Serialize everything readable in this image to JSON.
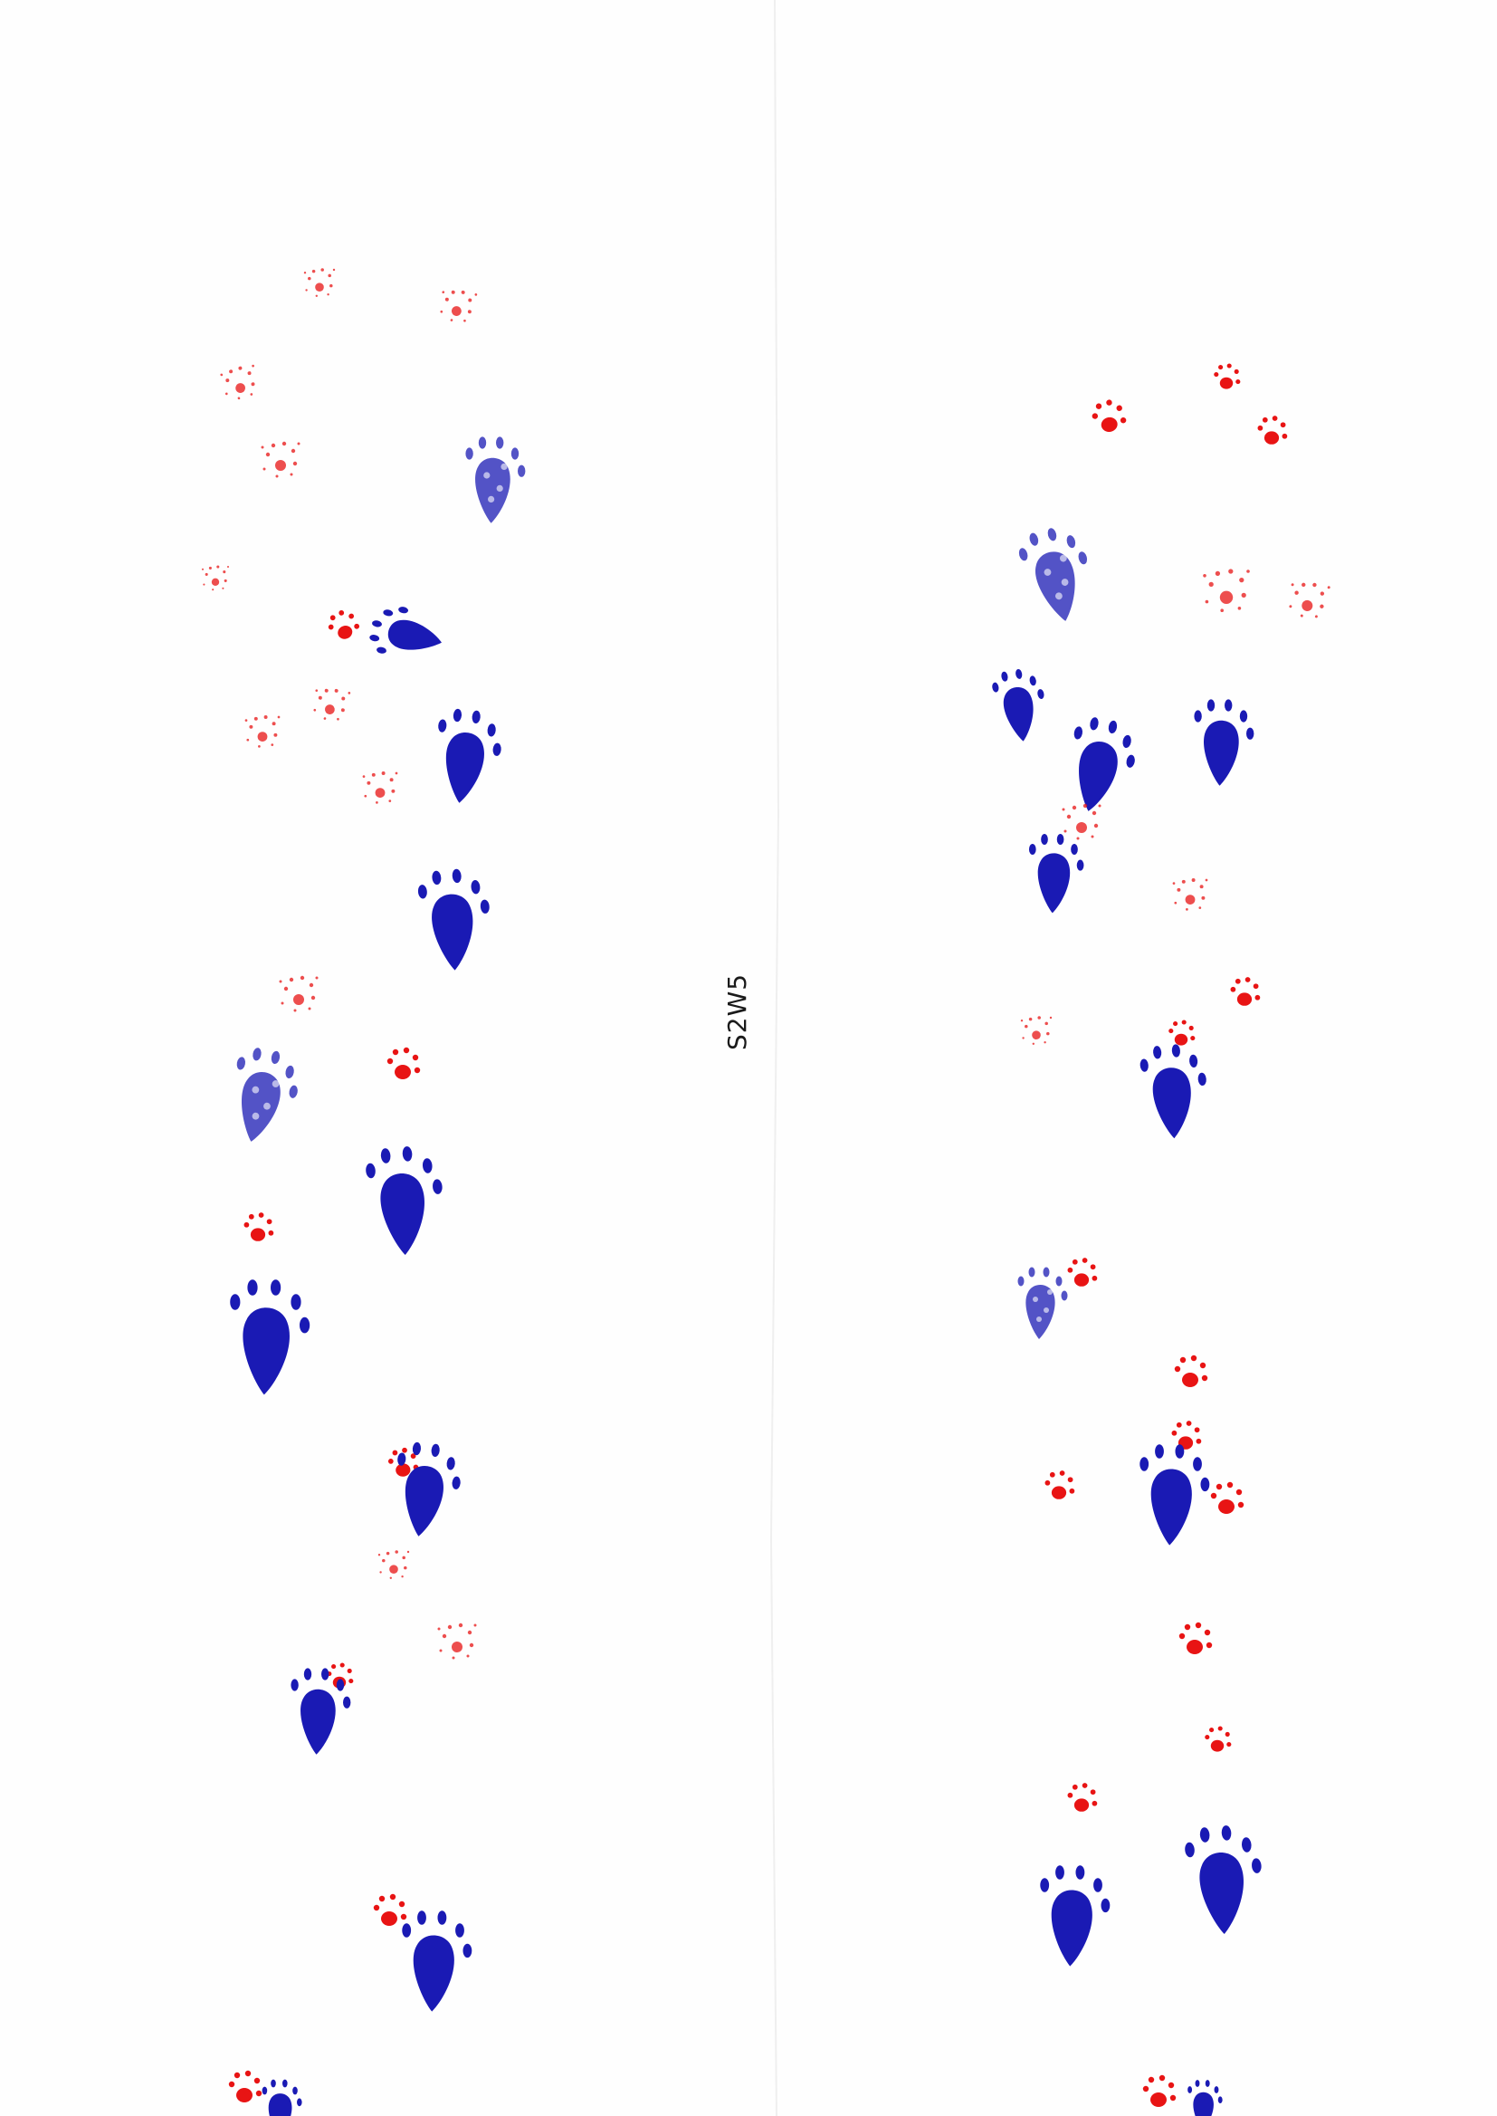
{
  "sheet": {
    "label": "S2W5",
    "background": "#fefefe",
    "ink_colors": {
      "forepaw": "#e81414",
      "hindpaw": "#1a1ab4"
    },
    "tracks": [
      {
        "name": "left-track",
        "forepaw_color": "red",
        "hindpaw_color": "blue"
      },
      {
        "name": "right-track",
        "forepaw_color": "red",
        "hindpaw_color": "blue"
      }
    ]
  }
}
